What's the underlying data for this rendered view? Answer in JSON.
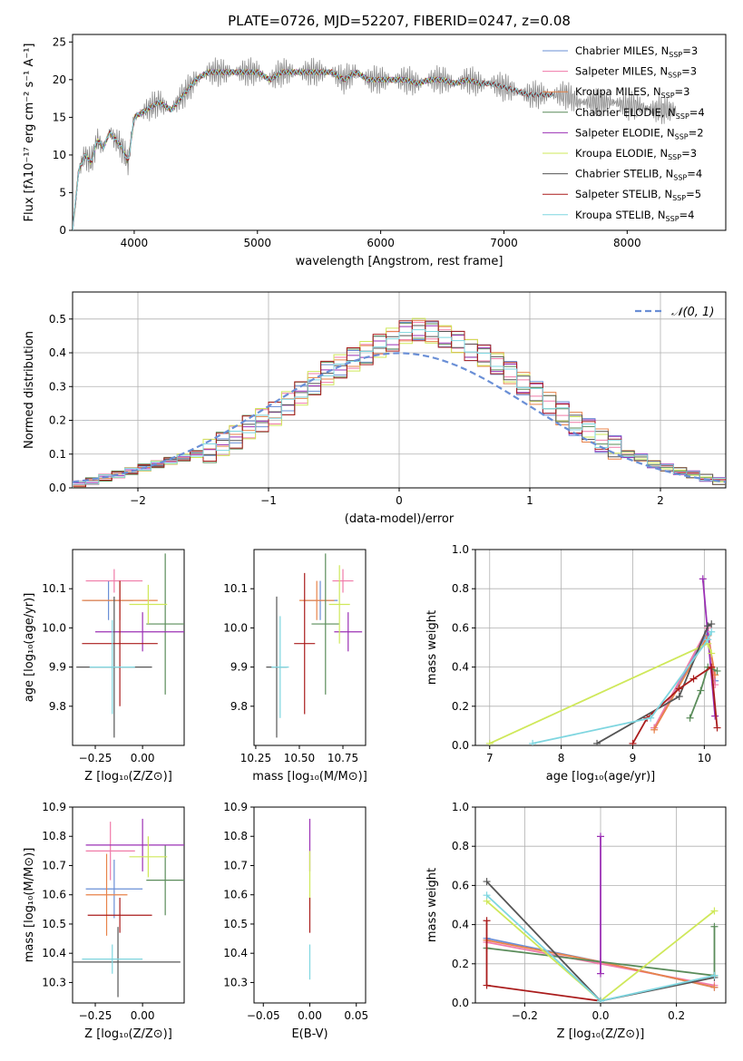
{
  "page_title": "PLATE=0726, MJD=52207, FIBERID=0247, z=0.08",
  "colors": [
    "#6a8fd6",
    "#f07aa8",
    "#e8834a",
    "#5a8c5a",
    "#9b30b5",
    "#cfe85a",
    "#555555",
    "#aa1c1c",
    "#7fd6e0"
  ],
  "chart_data": [
    {
      "id": "spectrum",
      "type": "line",
      "title": "PLATE=0726, MJD=52207, FIBERID=0247, z=0.08",
      "xlabel": "wavelength [Angstrom, rest frame]",
      "ylabel": "Flux [fλ10⁻¹⁷ erg cm⁻² s⁻¹ A⁻¹]",
      "xlim": [
        3500,
        8800
      ],
      "ylim": [
        0,
        26
      ],
      "xticks": [
        4000,
        5000,
        6000,
        7000,
        8000
      ],
      "yticks": [
        0,
        5,
        10,
        15,
        20,
        25
      ],
      "legend_position": "top-right",
      "data_color": "#808080",
      "data_points": [
        [
          3500,
          0
        ],
        [
          3550,
          8
        ],
        [
          3600,
          10
        ],
        [
          3650,
          9
        ],
        [
          3700,
          12
        ],
        [
          3750,
          11
        ],
        [
          3800,
          13
        ],
        [
          3850,
          12
        ],
        [
          3900,
          11
        ],
        [
          3950,
          9
        ],
        [
          4000,
          15
        ],
        [
          4100,
          16
        ],
        [
          4200,
          17
        ],
        [
          4300,
          16
        ],
        [
          4400,
          18
        ],
        [
          4500,
          20
        ],
        [
          4600,
          21
        ],
        [
          4700,
          21
        ],
        [
          4800,
          21
        ],
        [
          4900,
          21
        ],
        [
          5000,
          21
        ],
        [
          5100,
          20
        ],
        [
          5200,
          21
        ],
        [
          5300,
          21
        ],
        [
          5400,
          21
        ],
        [
          5500,
          21
        ],
        [
          5600,
          21
        ],
        [
          5700,
          20
        ],
        [
          5800,
          21
        ],
        [
          5900,
          20
        ],
        [
          6000,
          20
        ],
        [
          6100,
          20
        ],
        [
          6200,
          20
        ],
        [
          6300,
          19.5
        ],
        [
          6400,
          20
        ],
        [
          6500,
          20
        ],
        [
          6600,
          19.5
        ],
        [
          6700,
          20
        ],
        [
          6800,
          19.5
        ],
        [
          6900,
          19.5
        ],
        [
          7000,
          19
        ],
        [
          7100,
          18.5
        ],
        [
          7200,
          18
        ],
        [
          7300,
          18
        ],
        [
          7400,
          18
        ],
        [
          7500,
          18
        ],
        [
          7600,
          17
        ],
        [
          7700,
          17
        ],
        [
          7800,
          17
        ],
        [
          7900,
          17
        ],
        [
          8000,
          16.5
        ],
        [
          8100,
          16.5
        ],
        [
          8200,
          16
        ],
        [
          8300,
          16
        ],
        [
          8400,
          16
        ]
      ],
      "legend": [
        "Chabrier MILES, N_SSP=3",
        "Salpeter MILES, N_SSP=3",
        "Kroupa MILES, N_SSP=3",
        "Chabrier ELODIE, N_SSP=4",
        "Salpeter ELODIE, N_SSP=2",
        "Kroupa ELODIE, N_SSP=3",
        "Chabrier STELIB, N_SSP=4",
        "Salpeter STELIB, N_SSP=5",
        "Kroupa STELIB, N_SSP=4"
      ],
      "legend_text": [
        {
          "name": "Chabrier MILES, N",
          "sub": "SSP",
          "tail": "=3"
        },
        {
          "name": "Salpeter MILES, N",
          "sub": "SSP",
          "tail": "=3"
        },
        {
          "name": "Kroupa MILES, N",
          "sub": "SSP",
          "tail": "=3"
        },
        {
          "name": "Chabrier ELODIE, N",
          "sub": "SSP",
          "tail": "=4"
        },
        {
          "name": "Salpeter ELODIE, N",
          "sub": "SSP",
          "tail": "=2"
        },
        {
          "name": "Kroupa ELODIE, N",
          "sub": "SSP",
          "tail": "=3"
        },
        {
          "name": "Chabrier STELIB, N",
          "sub": "SSP",
          "tail": "=4"
        },
        {
          "name": "Salpeter STELIB, N",
          "sub": "SSP",
          "tail": "=5"
        },
        {
          "name": "Kroupa STELIB, N",
          "sub": "SSP",
          "tail": "=4"
        }
      ],
      "model_ranges": [
        [
          3500,
          7400
        ],
        [
          3500,
          7400
        ],
        [
          3500,
          7400
        ],
        [
          3500,
          6800
        ],
        [
          3500,
          6800
        ],
        [
          3500,
          6800
        ],
        [
          3500,
          7400
        ],
        [
          3500,
          7400
        ],
        [
          3500,
          7400
        ]
      ]
    },
    {
      "id": "residuals",
      "type": "bar",
      "xlabel": "(data-model)/error",
      "ylabel": "Normed distribution",
      "xlim": [
        -2.5,
        2.5
      ],
      "ylim": [
        0,
        0.58
      ],
      "xticks": [
        -2,
        -1,
        0,
        1,
        2
      ],
      "yticks": [
        0.0,
        0.1,
        0.2,
        0.3,
        0.4,
        0.5
      ],
      "grid": true,
      "legend": [
        "𝒩(0, 1)"
      ],
      "legend_position": "top-right",
      "normal_color": "#6a8fd6",
      "bin_edges_start": -2.5,
      "bin_width": 0.1,
      "hist_values": [
        0.01,
        0.02,
        0.03,
        0.04,
        0.05,
        0.06,
        0.07,
        0.08,
        0.09,
        0.1,
        0.11,
        0.13,
        0.15,
        0.18,
        0.2,
        0.22,
        0.25,
        0.28,
        0.31,
        0.34,
        0.36,
        0.38,
        0.4,
        0.42,
        0.44,
        0.46,
        0.47,
        0.46,
        0.45,
        0.43,
        0.41,
        0.39,
        0.37,
        0.34,
        0.31,
        0.28,
        0.25,
        0.22,
        0.19,
        0.17,
        0.14,
        0.12,
        0.1,
        0.09,
        0.07,
        0.06,
        0.05,
        0.04,
        0.03,
        0.02
      ]
    },
    {
      "id": "age-vs-z",
      "type": "scatter",
      "xlabel": "Z [log₁₀(Z/Z⊙)]",
      "ylabel": "age  [log₁₀(age/yr)]",
      "xlim": [
        -0.37,
        0.22
      ],
      "ylim": [
        9.7,
        10.2
      ],
      "xticks": [
        -0.25,
        0.0
      ],
      "yticks": [
        9.8,
        9.9,
        10.0,
        10.1
      ],
      "points": [
        {
          "x": -0.18,
          "xerr": 0.13,
          "y": 10.07,
          "yerr": 0.05
        },
        {
          "x": -0.15,
          "xerr": 0.15,
          "y": 10.12,
          "yerr": 0.03
        },
        {
          "x": -0.12,
          "xerr": 0.2,
          "y": 10.07,
          "yerr": 0.05
        },
        {
          "x": 0.12,
          "xerr": 0.1,
          "y": 10.01,
          "yerr": 0.18
        },
        {
          "x": 0.0,
          "xerr": 0.25,
          "y": 9.99,
          "yerr": 0.05
        },
        {
          "x": 0.03,
          "xerr": 0.1,
          "y": 10.06,
          "yerr": 0.05
        },
        {
          "x": -0.15,
          "xerr": 0.2,
          "y": 9.9,
          "yerr": 0.18
        },
        {
          "x": -0.12,
          "xerr": 0.2,
          "y": 9.96,
          "yerr": 0.16
        },
        {
          "x": -0.16,
          "xerr": 0.12,
          "y": 9.9,
          "yerr": 0.12
        }
      ]
    },
    {
      "id": "age-vs-mass",
      "type": "scatter",
      "xlabel": "mass [log₁₀(M/M⊙)]",
      "ylabel": "",
      "xlim": [
        10.24,
        10.88
      ],
      "ylim": [
        9.7,
        10.2
      ],
      "xticks": [
        10.25,
        10.5,
        10.75
      ],
      "yticks": [
        9.8,
        9.9,
        10.0,
        10.1
      ],
      "points": [
        {
          "x": 10.62,
          "xerr": 0.1,
          "y": 10.07,
          "yerr": 0.05
        },
        {
          "x": 10.75,
          "xerr": 0.06,
          "y": 10.12,
          "yerr": 0.03
        },
        {
          "x": 10.6,
          "xerr": 0.1,
          "y": 10.07,
          "yerr": 0.05
        },
        {
          "x": 10.65,
          "xerr": 0.08,
          "y": 10.01,
          "yerr": 0.18
        },
        {
          "x": 10.78,
          "xerr": 0.08,
          "y": 9.99,
          "yerr": 0.05
        },
        {
          "x": 10.73,
          "xerr": 0.06,
          "y": 10.06,
          "yerr": 0.1
        },
        {
          "x": 10.37,
          "xerr": 0.06,
          "y": 9.9,
          "yerr": 0.18
        },
        {
          "x": 10.53,
          "xerr": 0.06,
          "y": 9.96,
          "yerr": 0.18
        },
        {
          "x": 10.39,
          "xerr": 0.05,
          "y": 9.9,
          "yerr": 0.13
        }
      ]
    },
    {
      "id": "weight-vs-age",
      "type": "line",
      "xlabel": "age  [log₁₀(age/yr)]",
      "ylabel": "mass weight",
      "xlim": [
        6.8,
        10.3
      ],
      "ylim": [
        0,
        1
      ],
      "xticks": [
        7,
        8,
        9,
        10
      ],
      "yticks": [
        0.0,
        0.2,
        0.4,
        0.6,
        0.8,
        1.0
      ],
      "grid": true,
      "series": [
        {
          "x": [
            9.3,
            10.05,
            10.15
          ],
          "y": [
            0.09,
            0.58,
            0.33
          ]
        },
        {
          "x": [
            9.3,
            10.05,
            10.15
          ],
          "y": [
            0.09,
            0.6,
            0.31
          ]
        },
        {
          "x": [
            9.3,
            10.05,
            10.15
          ],
          "y": [
            0.08,
            0.56,
            0.36
          ]
        },
        {
          "x": [
            9.8,
            9.95,
            10.05,
            10.18
          ],
          "y": [
            0.14,
            0.28,
            0.4,
            0.38
          ]
        },
        {
          "x": [
            9.98,
            10.15
          ],
          "y": [
            0.85,
            0.15
          ]
        },
        {
          "x": [
            7.0,
            10.05,
            10.1
          ],
          "y": [
            0.01,
            0.52,
            0.47
          ]
        },
        {
          "x": [
            8.5,
            9.65,
            10.05,
            10.1
          ],
          "y": [
            0.01,
            0.25,
            0.61,
            0.62
          ]
        },
        {
          "x": [
            9.0,
            9.2,
            9.65,
            9.85,
            10.1,
            10.18
          ],
          "y": [
            0.01,
            0.14,
            0.29,
            0.34,
            0.4,
            0.09
          ]
        },
        {
          "x": [
            7.6,
            9.25,
            10.05,
            10.1
          ],
          "y": [
            0.01,
            0.14,
            0.54,
            0.58
          ]
        }
      ]
    },
    {
      "id": "mass-vs-z",
      "type": "scatter",
      "xlabel": "Z [log₁₀(Z/Z⊙)]",
      "ylabel": "mass [log₁₀(M/M⊙)]",
      "xlim": [
        -0.37,
        0.22
      ],
      "ylim": [
        10.23,
        10.9
      ],
      "xticks": [
        -0.25,
        0.0
      ],
      "yticks": [
        10.3,
        10.4,
        10.5,
        10.6,
        10.7,
        10.8,
        10.9
      ],
      "points": [
        {
          "x": -0.15,
          "xerr": 0.15,
          "y": 10.62,
          "yerr": 0.1
        },
        {
          "x": -0.17,
          "xerr": 0.13,
          "y": 10.75,
          "yerr": 0.1
        },
        {
          "x": -0.19,
          "xerr": 0.11,
          "y": 10.6,
          "yerr": 0.14
        },
        {
          "x": 0.12,
          "xerr": 0.1,
          "y": 10.65,
          "yerr": 0.12
        },
        {
          "x": 0.0,
          "xerr": 0.3,
          "y": 10.77,
          "yerr": 0.09
        },
        {
          "x": 0.03,
          "xerr": 0.1,
          "y": 10.73,
          "yerr": 0.07
        },
        {
          "x": -0.13,
          "xerr": 0.33,
          "y": 10.37,
          "yerr": 0.12
        },
        {
          "x": -0.12,
          "xerr": 0.17,
          "y": 10.53,
          "yerr": 0.06
        },
        {
          "x": -0.16,
          "xerr": 0.16,
          "y": 10.38,
          "yerr": 0.05
        }
      ]
    },
    {
      "id": "mass-vs-ebv",
      "type": "scatter",
      "xlabel": "E(B-V)",
      "ylabel": "",
      "xlim": [
        -0.06,
        0.06
      ],
      "ylim": [
        10.23,
        10.9
      ],
      "xticks": [
        -0.05,
        0.0,
        0.05
      ],
      "yticks": [
        10.3,
        10.4,
        10.5,
        10.6,
        10.7,
        10.8,
        10.9
      ],
      "points": [
        {
          "x": 0,
          "xerr": 0,
          "y": 10.77,
          "yerr": 0.09
        },
        {
          "x": 0,
          "xerr": 0,
          "y": 10.65,
          "yerr": 0.1
        },
        {
          "x": 0,
          "xerr": 0,
          "y": 10.53,
          "yerr": 0.06
        },
        {
          "x": 0,
          "xerr": 0,
          "y": 10.37,
          "yerr": 0.06
        }
      ]
    },
    {
      "id": "weight-vs-z",
      "type": "line",
      "xlabel": "Z [log₁₀(Z/Z⊙)]",
      "ylabel": "mass weight",
      "xlim": [
        -0.33,
        0.33
      ],
      "ylim": [
        0,
        1
      ],
      "xticks": [
        -0.2,
        0.0,
        0.2
      ],
      "yticks": [
        0.0,
        0.2,
        0.4,
        0.6,
        0.8,
        1.0
      ],
      "grid": true,
      "series": [
        {
          "x": [
            -0.3,
            0.0,
            0.3
          ],
          "y": [
            0.33,
            0.21,
            0.08
          ]
        },
        {
          "x": [
            -0.3,
            0.0,
            0.3
          ],
          "y": [
            0.31,
            0.2,
            0.09
          ]
        },
        {
          "x": [
            -0.3,
            0.0,
            0.3
          ],
          "y": [
            0.32,
            0.21,
            0.08
          ]
        },
        {
          "x": [
            -0.3,
            0.3,
            0.3
          ],
          "y": [
            0.28,
            0.14,
            0.39
          ]
        },
        {
          "x": [
            0.0,
            0.0
          ],
          "y": [
            0.85,
            0.15
          ]
        },
        {
          "x": [
            -0.3,
            0.0,
            0.3
          ],
          "y": [
            0.52,
            0.01,
            0.47
          ]
        },
        {
          "x": [
            -0.3,
            0.0,
            0.3
          ],
          "y": [
            0.62,
            0.01,
            0.13
          ]
        },
        {
          "x": [
            -0.3,
            -0.3,
            0.0
          ],
          "y": [
            0.42,
            0.09,
            0.01
          ]
        },
        {
          "x": [
            -0.3,
            0.0,
            0.3
          ],
          "y": [
            0.55,
            0.01,
            0.14
          ]
        }
      ]
    }
  ]
}
